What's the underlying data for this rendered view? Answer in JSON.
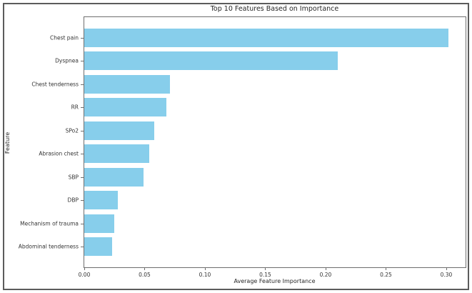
{
  "chart_data": {
    "type": "bar",
    "orientation": "horizontal",
    "title": "Top 10 Features Based on Importance",
    "xlabel": "Average Feature Importance",
    "ylabel": "Feature",
    "categories": [
      "Chest pain",
      "Dyspnea",
      "Chest tenderness",
      "RR",
      "SPo2",
      "Abrasion chest",
      "SBP",
      "DBP",
      "Mechanism of trauma",
      "Abdominal tenderness"
    ],
    "values": [
      0.302,
      0.21,
      0.071,
      0.068,
      0.058,
      0.054,
      0.049,
      0.028,
      0.025,
      0.023
    ],
    "xlim": [
      0,
      0.316
    ],
    "xticks": [
      0.0,
      0.05,
      0.1,
      0.15,
      0.2,
      0.25,
      0.3
    ],
    "xtick_labels": [
      "0.00",
      "0.05",
      "0.10",
      "0.15",
      "0.20",
      "0.25",
      "0.30"
    ],
    "grid": "off",
    "legend": "none",
    "bar_color": "#87CEEB"
  }
}
